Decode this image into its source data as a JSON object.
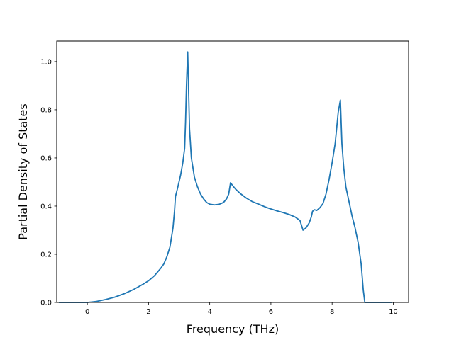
{
  "chart_data": {
    "type": "line",
    "title": "",
    "xlabel": "Frequency (THz)",
    "ylabel": "Partial Density of States",
    "xlim": [
      -1.0,
      10.5
    ],
    "ylim": [
      0.0,
      1.085
    ],
    "xticks": [
      0,
      2,
      4,
      6,
      8,
      10
    ],
    "yticks": [
      0.0,
      0.2,
      0.4,
      0.6,
      0.8,
      1.0
    ],
    "xtick_labels": [
      "0",
      "2",
      "4",
      "6",
      "8",
      "10"
    ],
    "ytick_labels": [
      "0.0",
      "0.2",
      "0.4",
      "0.6",
      "0.8",
      "1.0"
    ],
    "grid": false,
    "legend": "none",
    "series": [
      {
        "color": "#1f77b4",
        "points": [
          [
            -0.93,
            0.0
          ],
          [
            -0.5,
            0.0
          ],
          [
            0.0,
            0.0
          ],
          [
            0.3,
            0.004
          ],
          [
            0.6,
            0.012
          ],
          [
            0.9,
            0.022
          ],
          [
            1.2,
            0.036
          ],
          [
            1.5,
            0.053
          ],
          [
            1.8,
            0.074
          ],
          [
            2.0,
            0.09
          ],
          [
            2.2,
            0.112
          ],
          [
            2.4,
            0.142
          ],
          [
            2.5,
            0.16
          ],
          [
            2.6,
            0.19
          ],
          [
            2.7,
            0.23
          ],
          [
            2.75,
            0.27
          ],
          [
            2.8,
            0.31
          ],
          [
            2.85,
            0.38
          ],
          [
            2.88,
            0.44
          ],
          [
            2.95,
            0.475
          ],
          [
            3.05,
            0.53
          ],
          [
            3.12,
            0.58
          ],
          [
            3.18,
            0.64
          ],
          [
            3.21,
            0.75
          ],
          [
            3.24,
            0.9
          ],
          [
            3.28,
            1.04
          ],
          [
            3.31,
            0.88
          ],
          [
            3.34,
            0.72
          ],
          [
            3.4,
            0.6
          ],
          [
            3.5,
            0.52
          ],
          [
            3.6,
            0.48
          ],
          [
            3.7,
            0.45
          ],
          [
            3.8,
            0.43
          ],
          [
            3.9,
            0.415
          ],
          [
            4.0,
            0.408
          ],
          [
            4.15,
            0.405
          ],
          [
            4.3,
            0.407
          ],
          [
            4.45,
            0.415
          ],
          [
            4.55,
            0.43
          ],
          [
            4.62,
            0.45
          ],
          [
            4.68,
            0.497
          ],
          [
            4.75,
            0.485
          ],
          [
            4.85,
            0.47
          ],
          [
            5.0,
            0.452
          ],
          [
            5.2,
            0.433
          ],
          [
            5.4,
            0.418
          ],
          [
            5.6,
            0.408
          ],
          [
            5.8,
            0.397
          ],
          [
            6.0,
            0.388
          ],
          [
            6.2,
            0.38
          ],
          [
            6.4,
            0.373
          ],
          [
            6.6,
            0.365
          ],
          [
            6.8,
            0.354
          ],
          [
            6.95,
            0.34
          ],
          [
            7.0,
            0.32
          ],
          [
            7.05,
            0.3
          ],
          [
            7.15,
            0.31
          ],
          [
            7.25,
            0.33
          ],
          [
            7.32,
            0.355
          ],
          [
            7.36,
            0.378
          ],
          [
            7.42,
            0.385
          ],
          [
            7.5,
            0.382
          ],
          [
            7.6,
            0.393
          ],
          [
            7.7,
            0.41
          ],
          [
            7.8,
            0.45
          ],
          [
            7.9,
            0.51
          ],
          [
            8.0,
            0.58
          ],
          [
            8.1,
            0.66
          ],
          [
            8.2,
            0.79
          ],
          [
            8.27,
            0.84
          ],
          [
            8.32,
            0.66
          ],
          [
            8.38,
            0.56
          ],
          [
            8.45,
            0.48
          ],
          [
            8.55,
            0.42
          ],
          [
            8.65,
            0.36
          ],
          [
            8.75,
            0.31
          ],
          [
            8.85,
            0.25
          ],
          [
            8.95,
            0.16
          ],
          [
            9.02,
            0.05
          ],
          [
            9.07,
            0.0
          ],
          [
            9.5,
            0.0
          ],
          [
            9.97,
            0.0
          ]
        ]
      }
    ]
  }
}
